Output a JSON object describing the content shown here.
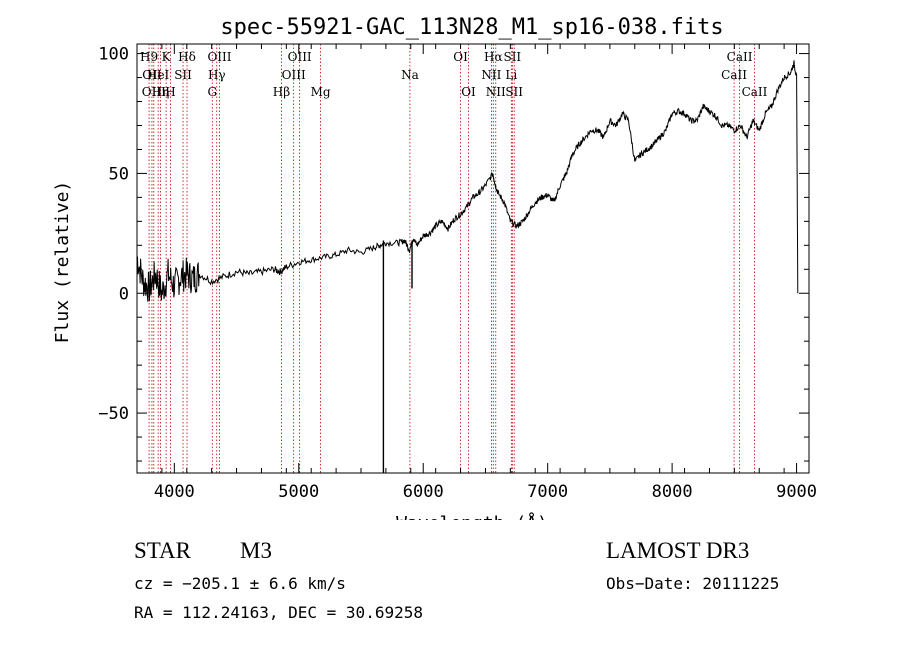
{
  "chart_data": {
    "type": "line",
    "title": "spec-55921-GAC_113N28_M1_sp16-038.fits",
    "xlabel": "Wavelength (Å)",
    "ylabel": "Flux (relative)",
    "xlim": [
      3700,
      9100
    ],
    "ylim": [
      -75,
      104
    ],
    "xticks": [
      4000,
      5000,
      6000,
      7000,
      8000,
      9000
    ],
    "yticks": [
      -50,
      0,
      50,
      100
    ],
    "grid": false,
    "series": [
      {
        "name": "spectrum",
        "color": "#000000",
        "x": [
          3700,
          3750,
          3800,
          3850,
          3900,
          3950,
          4000,
          4050,
          4100,
          4150,
          4200,
          4300,
          4400,
          4500,
          4600,
          4700,
          4800,
          4850,
          4900,
          5000,
          5100,
          5200,
          5300,
          5400,
          5500,
          5600,
          5650,
          5700,
          5800,
          5850,
          5890,
          5920,
          5950,
          6000,
          6050,
          6100,
          6150,
          6200,
          6250,
          6300,
          6350,
          6400,
          6450,
          6500,
          6560,
          6580,
          6600,
          6650,
          6700,
          6750,
          6800,
          6850,
          6900,
          6950,
          7000,
          7050,
          7100,
          7150,
          7200,
          7250,
          7300,
          7350,
          7400,
          7450,
          7500,
          7550,
          7600,
          7650,
          7700,
          7750,
          7800,
          7850,
          7900,
          7950,
          8000,
          8050,
          8100,
          8150,
          8200,
          8250,
          8300,
          8350,
          8400,
          8450,
          8500,
          8550,
          8600,
          8650,
          8700,
          8750,
          8800,
          8850,
          8900,
          8950,
          8980,
          9000,
          9010
        ],
        "y": [
          15,
          5,
          2,
          8,
          0,
          8,
          3,
          7,
          8,
          6,
          8,
          5,
          7,
          9,
          8,
          9,
          10,
          9,
          11,
          13,
          14,
          15,
          16,
          18,
          17,
          19,
          20,
          21,
          21,
          22,
          18,
          23,
          20,
          24,
          25,
          28,
          30,
          27,
          31,
          33,
          36,
          40,
          42,
          45,
          50,
          45,
          42,
          38,
          30,
          28,
          30,
          34,
          38,
          40,
          41,
          38,
          45,
          50,
          58,
          62,
          65,
          68,
          68,
          65,
          72,
          70,
          75,
          72,
          55,
          58,
          60,
          62,
          65,
          68,
          75,
          76,
          75,
          72,
          72,
          78,
          76,
          74,
          70,
          70,
          68,
          70,
          65,
          72,
          68,
          75,
          78,
          85,
          90,
          92,
          96,
          90,
          0
        ],
        "spikes": [
          {
            "x": 5680,
            "y": -75
          },
          {
            "x": 5910,
            "y": 2
          }
        ]
      }
    ],
    "lines": [
      {
        "x": 3797,
        "label": "H9",
        "row": 0
      },
      {
        "x": 3820,
        "label": "OII",
        "row": 1
      },
      {
        "x": 3835,
        "label": "OIII",
        "row": 2
      },
      {
        "x": 3870,
        "label": "HeI",
        "row": 1
      },
      {
        "x": 3889,
        "label": "Hη",
        "row": 2
      },
      {
        "x": 3934,
        "label": "K",
        "row": 0
      },
      {
        "x": 3969,
        "label": "H",
        "row": 2
      },
      {
        "x": 4070,
        "label": "SII",
        "row": 1
      },
      {
        "x": 4102,
        "label": "Hδ",
        "row": 0
      },
      {
        "x": 4305,
        "label": "G",
        "row": 2
      },
      {
        "x": 4341,
        "label": "Hγ",
        "row": 1
      },
      {
        "x": 4363,
        "label": "OIII",
        "row": 0
      },
      {
        "x": 4861,
        "label": "Hβ",
        "row": 2
      },
      {
        "x": 4959,
        "label": "OIII",
        "row": 1
      },
      {
        "x": 5007,
        "label": "OIII",
        "row": 0
      },
      {
        "x": 5175,
        "label": "Mg",
        "row": 2
      },
      {
        "x": 5893,
        "label": "Na",
        "row": 1
      },
      {
        "x": 6300,
        "label": "OI",
        "row": 0
      },
      {
        "x": 6364,
        "label": "OI",
        "row": 2
      },
      {
        "x": 6548,
        "label": "NII",
        "row": 1
      },
      {
        "x": 6563,
        "label": "Hα",
        "row": 0
      },
      {
        "x": 6583,
        "label": "NII",
        "row": 2
      },
      {
        "x": 6708,
        "label": "Li",
        "row": 1
      },
      {
        "x": 6716,
        "label": "SII",
        "row": 0
      },
      {
        "x": 6731,
        "label": "SII",
        "row": 2
      },
      {
        "x": 8498,
        "label": "CaII",
        "row": 1
      },
      {
        "x": 8542,
        "label": "CaII",
        "row": 0
      },
      {
        "x": 8662,
        "label": "CaII",
        "row": 2
      }
    ]
  },
  "info": {
    "class": "STAR",
    "subclass": "M3",
    "survey": "LAMOST DR3",
    "cz": "cz = −205.1 ± 6.6 km/s",
    "obsdate": "Obs−Date: 20111225",
    "coords": "RA = 112.24163, DEC =  30.69258"
  },
  "colors": {
    "line_marker": "#c00000",
    "spectrum": "#000000",
    "axes": "#000000"
  }
}
